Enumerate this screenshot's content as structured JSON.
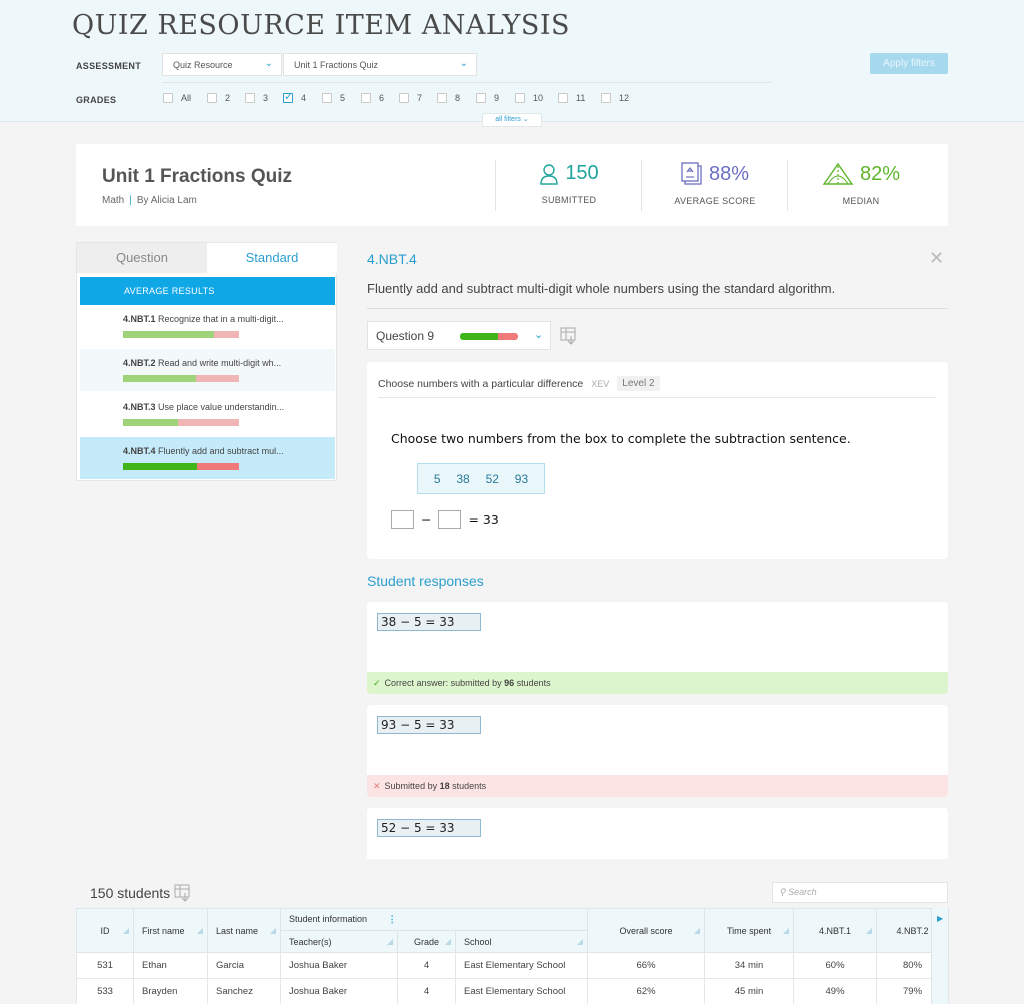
{
  "header": {
    "title": "QUIZ RESOURCE ITEM ANALYSIS",
    "assessment_label": "ASSESSMENT",
    "assessment_type": "Quiz Resource",
    "assessment_name": "Unit 1 Fractions Quiz",
    "grades_label": "GRADES",
    "grades": [
      {
        "label": "All",
        "checked": false
      },
      {
        "label": "2",
        "checked": false
      },
      {
        "label": "3",
        "checked": false
      },
      {
        "label": "4",
        "checked": true
      },
      {
        "label": "5",
        "checked": false
      },
      {
        "label": "6",
        "checked": false
      },
      {
        "label": "7",
        "checked": false
      },
      {
        "label": "8",
        "checked": false
      },
      {
        "label": "9",
        "checked": false
      },
      {
        "label": "10",
        "checked": false
      },
      {
        "label": "11",
        "checked": false
      },
      {
        "label": "12",
        "checked": false
      }
    ],
    "apply_label": "Apply filters",
    "all_filters_label": "all filters"
  },
  "summary": {
    "title": "Unit 1 Fractions Quiz",
    "subject": "Math",
    "author": "By Alicia Lam",
    "submitted_value": "150",
    "submitted_label": "SUBMITTED",
    "average_value": "88%",
    "average_label": "AVERAGE SCORE",
    "median_value": "82%",
    "median_label": "MEDIAN",
    "colors": {
      "submitted": "#1fa59b",
      "average": "#6b6fc0",
      "median": "#5fb52a"
    }
  },
  "left_panel": {
    "tab_question": "Question",
    "tab_standard": "Standard",
    "heading": "AVERAGE RESULTS",
    "standards": [
      {
        "code": "4.NBT.1",
        "text": "Recognize that in a multi-digit...",
        "correct_fraction": 0.78
      },
      {
        "code": "4.NBT.2",
        "text": "Read and write multi-digit wh...",
        "correct_fraction": 0.63
      },
      {
        "code": "4.NBT.3",
        "text": "Use place value understandin...",
        "correct_fraction": 0.47
      },
      {
        "code": "4.NBT.4",
        "text": "Fluently add and subtract mul...",
        "correct_fraction": 0.64,
        "active": true
      }
    ]
  },
  "detail": {
    "code": "4.NBT.4",
    "close_icon": "close-icon",
    "description": "Fluently add and subtract multi-digit whole numbers using the standard algorithm.",
    "question_select": "Question 9",
    "question": {
      "topic": "Choose numbers with a particular difference",
      "code": "XEV",
      "level": "Level 2",
      "prompt": "Choose two numbers from the box to complete the subtraction sentence.",
      "numbers": [
        "5",
        "38",
        "52",
        "93"
      ],
      "minus": "−",
      "result": "= 33"
    },
    "responses_title": "Student responses",
    "responses": [
      {
        "answer": "38 − 5 = 33",
        "prefix": "Correct answer: submitted by ",
        "count": "96",
        "suffix": " students",
        "correct": true
      },
      {
        "answer": "93 − 5 = 33",
        "prefix": "Submitted by ",
        "count": "18",
        "suffix": " students",
        "correct": false
      },
      {
        "answer": "52 − 5 = 33"
      }
    ]
  },
  "students": {
    "count_label": "150 students",
    "search_placeholder": "Search",
    "columns": {
      "id": "ID",
      "first": "First name",
      "last": "Last name",
      "group": "Student information",
      "teacher": "Teacher(s)",
      "grade": "Grade",
      "school": "School",
      "overall": "Overall score",
      "time": "Time spent",
      "nbt1": "4.NBT.1",
      "nbt2": "4.NBT.2"
    },
    "rows": [
      {
        "id": "531",
        "first": "Ethan",
        "last": "Garcia",
        "teacher": "Joshua Baker",
        "grade": "4",
        "school": "East Elementary School",
        "overall": "66%",
        "time": "34 min",
        "nbt1": "60%",
        "nbt2": "80%"
      },
      {
        "id": "533",
        "first": "Brayden",
        "last": "Sanchez",
        "teacher": "Joshua Baker",
        "grade": "4",
        "school": "East Elementary School",
        "overall": "62%",
        "time": "45 min",
        "nbt1": "49%",
        "nbt2": "79%"
      }
    ]
  }
}
